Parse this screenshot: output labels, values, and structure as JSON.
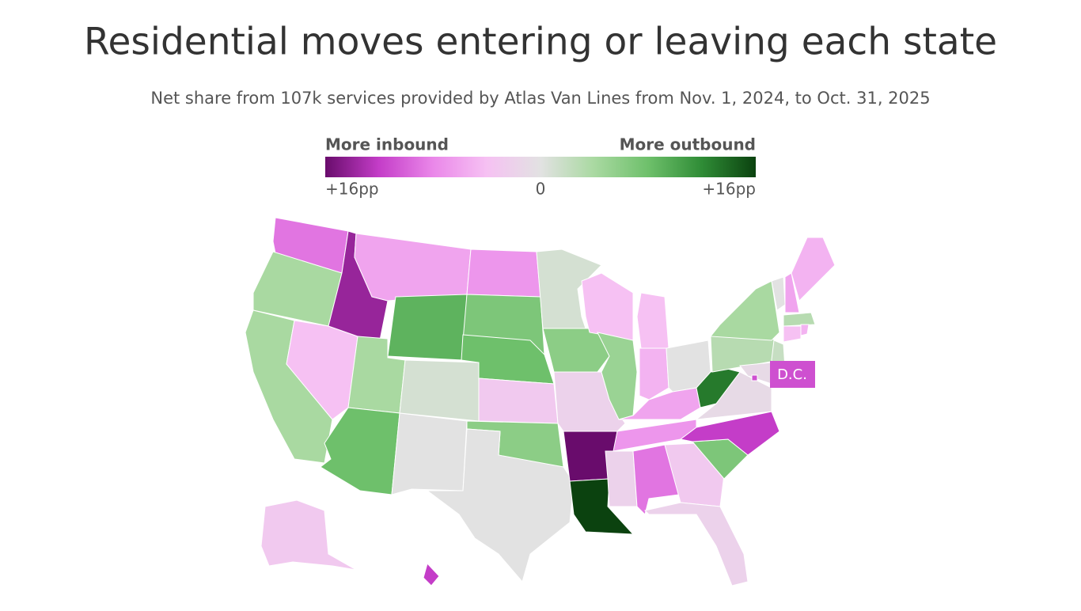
{
  "chart_data": {
    "type": "choropleth",
    "title": "Residential moves entering or leaving each state",
    "subtitle": "Net share from 107k services provided by Atlas Van Lines from Nov. 1, 2024, to Oct. 31, 2025",
    "legend_left_label": "More inbound",
    "legend_right_label": "More outbound",
    "lim": [
      -16,
      16
    ],
    "ticks": [
      {
        "value": -16,
        "label": "+16pp"
      },
      0,
      {
        "value": 16,
        "label": "+16pp"
      }
    ],
    "colorscale": [
      "#690c6c",
      "#c43dc8",
      "#ea87e9",
      "#f6c1f3",
      "#e2e2e2",
      "#a9d9a1",
      "#6ec06b",
      "#2f8c36",
      "#0b420f"
    ],
    "annotation": "D.C.",
    "values": [
      -9,
      4,
      4,
      -4,
      -14,
      -6,
      9,
      4,
      1,
      8,
      0,
      -7,
      7,
      8,
      -3,
      6,
      0,
      1,
      6,
      -2,
      -16,
      16,
      -4,
      5,
      -4,
      -5,
      0,
      -6,
      -7,
      -2,
      -9,
      -3,
      -2,
      7,
      -12,
      -1,
      13,
      3,
      4,
      0,
      -6,
      -5,
      3,
      -4,
      -5,
      2,
      0,
      -1,
      -11,
      -3,
      -12
    ]
  }
}
